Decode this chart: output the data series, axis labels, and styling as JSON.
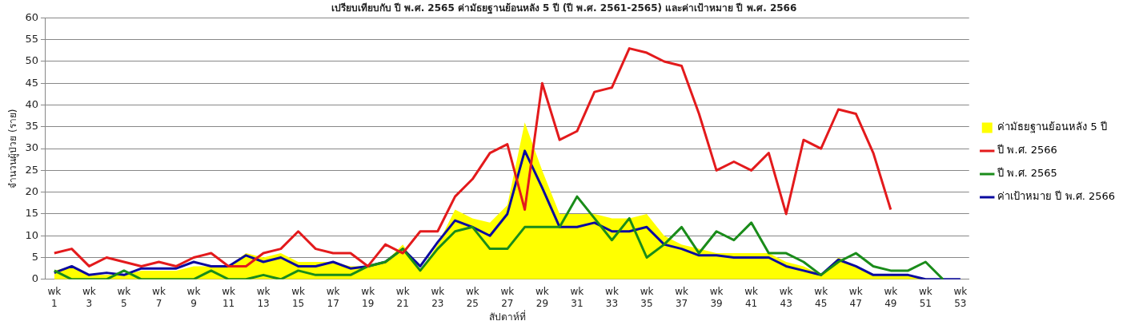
{
  "chart_data": {
    "type": "line",
    "title": "เปรียบเทียบกับ ปี พ.ศ. 2565 ค่ามัธยฐานย้อนหลัง 5 ปี (ปี พ.ศ. 2561-2565) และค่าเป้าหมาย ปี พ.ศ. 2566",
    "xlabel": "สัปดาห์ที่",
    "ylabel": "จำนวนผู้ป่วย (ราย)",
    "categories": [
      "wk 1",
      null,
      "wk 3",
      null,
      "wk 5",
      null,
      "wk 7",
      null,
      "wk 9",
      null,
      "wk 11",
      null,
      "wk 13",
      null,
      "wk 15",
      null,
      "wk 17",
      null,
      "wk 19",
      null,
      "wk 21",
      null,
      "wk 23",
      null,
      "wk 25",
      null,
      "wk 27",
      null,
      "wk 29",
      null,
      "wk 31",
      null,
      "wk 33",
      null,
      "wk 35",
      null,
      "wk 37",
      null,
      "wk 39",
      null,
      "wk 41",
      null,
      "wk 43",
      null,
      "wk 45",
      null,
      "wk 47",
      null,
      "wk 49",
      null,
      "wk 51",
      null,
      "wk 53"
    ],
    "series": [
      {
        "name": "ค่ามัธยฐานย้อนหลัง 5 ปี",
        "type": "area",
        "color": "#ffff00",
        "values": [
          2,
          3,
          1,
          1,
          1,
          2,
          2,
          2,
          3,
          3,
          3,
          6,
          5,
          6,
          4,
          4,
          4,
          3,
          3,
          4,
          8,
          2,
          8,
          16,
          14,
          13,
          17,
          36,
          25,
          15,
          15,
          15,
          14,
          14,
          15,
          10,
          8,
          7,
          6,
          6,
          6,
          6,
          4,
          3,
          1,
          5,
          3,
          1,
          1,
          1,
          0,
          0,
          0
        ]
      },
      {
        "name": "ปี พ.ศ. 2566",
        "type": "line",
        "color": "#e31a1c",
        "values": [
          6,
          7,
          3,
          5,
          4,
          3,
          4,
          3,
          5,
          6,
          3,
          3,
          6,
          7,
          11,
          7,
          6,
          6,
          3,
          8,
          6,
          11,
          11,
          19,
          23,
          29,
          31,
          16,
          45,
          32,
          34,
          43,
          44,
          53,
          52,
          50,
          49,
          38,
          25,
          27,
          25,
          29,
          15,
          32,
          30,
          39,
          38,
          29,
          16,
          null,
          null,
          null,
          null
        ]
      },
      {
        "name": "ปี พ.ศ. 2565",
        "type": "line",
        "color": "#1a8c1a",
        "values": [
          2,
          0,
          0,
          0,
          2,
          0,
          0,
          0,
          0,
          2,
          0,
          0,
          1,
          0,
          2,
          1,
          1,
          1,
          3,
          4,
          7,
          2,
          7,
          11,
          12,
          7,
          7,
          12,
          12,
          12,
          19,
          14,
          9,
          14,
          5,
          8,
          12,
          6,
          11,
          9,
          13,
          6,
          6,
          4,
          1,
          4,
          6,
          3,
          2,
          2,
          4,
          0,
          null
        ]
      },
      {
        "name": "ค่าเป้าหมาย ปี พ.ศ. 2566",
        "type": "line",
        "color": "#0a0aa0",
        "values": [
          1.5,
          3,
          1,
          1.5,
          1,
          2.5,
          2.5,
          2.5,
          4,
          3,
          3,
          5.5,
          4,
          5,
          3,
          3,
          4,
          2.5,
          3,
          4,
          7,
          3,
          8.5,
          13.5,
          12,
          10,
          15,
          29.5,
          21,
          12,
          12,
          13,
          11,
          11,
          12,
          8,
          7,
          5.5,
          5.5,
          5,
          5,
          5,
          3,
          2,
          1,
          4.5,
          3,
          1,
          1,
          1,
          0,
          0,
          0
        ]
      }
    ],
    "ylim": [
      0,
      60
    ],
    "yticks": [
      0,
      5,
      10,
      15,
      20,
      25,
      30,
      35,
      40,
      45,
      50,
      55,
      60
    ],
    "grid": "y",
    "legend": "right",
    "marker": "none",
    "line_style": "solid"
  }
}
